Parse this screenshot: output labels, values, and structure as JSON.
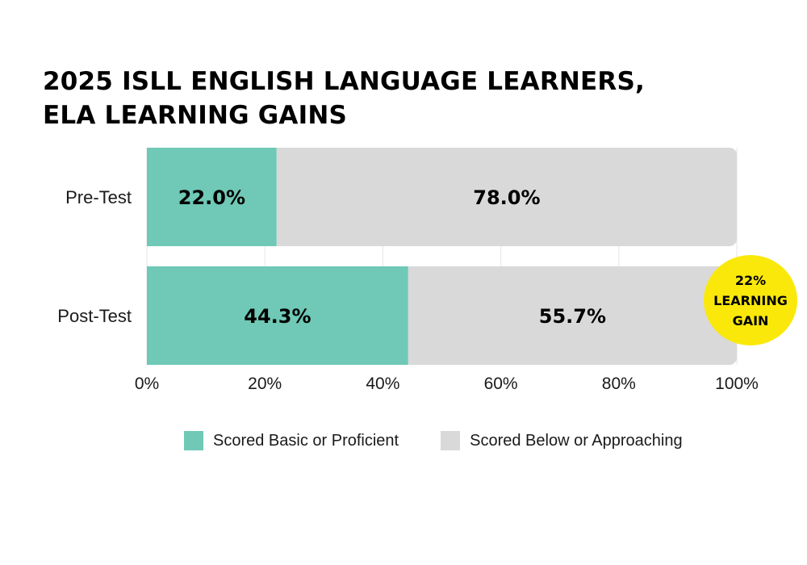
{
  "title": {
    "line1": "2025 ISLL ENGLISH LANGUAGE LEARNERS,",
    "line2": "ELA LEARNING GAINS"
  },
  "colors": {
    "proficient": "#6fc9b6",
    "below": "#d9d9d9",
    "badge": "#fae80a",
    "grid": "#e6e6e6"
  },
  "badge": {
    "line1": "22%",
    "line2": "LEARNING",
    "line3": "GAIN"
  },
  "legend": [
    {
      "label": "Scored Basic or Proficient"
    },
    {
      "label": "Scored Below or Approaching"
    }
  ],
  "chart_data": {
    "type": "bar",
    "orientation": "horizontal",
    "stacked": true,
    "title": "2025 ISLL ENGLISH LANGUAGE LEARNERS, ELA LEARNING GAINS",
    "categories": [
      "Pre-Test",
      "Post-Test"
    ],
    "series": [
      {
        "name": "Scored Basic or Proficient",
        "values": [
          22.0,
          44.3
        ],
        "labels": [
          "22.0%",
          "44.3%"
        ]
      },
      {
        "name": "Scored Below or Approaching",
        "values": [
          78.0,
          55.7
        ],
        "labels": [
          "78.0%",
          "55.7%"
        ]
      }
    ],
    "xlim": [
      0,
      100
    ],
    "xticks": [
      "0%",
      "20%",
      "40%",
      "60%",
      "80%",
      "100%"
    ],
    "grid": true,
    "legend_position": "bottom"
  }
}
